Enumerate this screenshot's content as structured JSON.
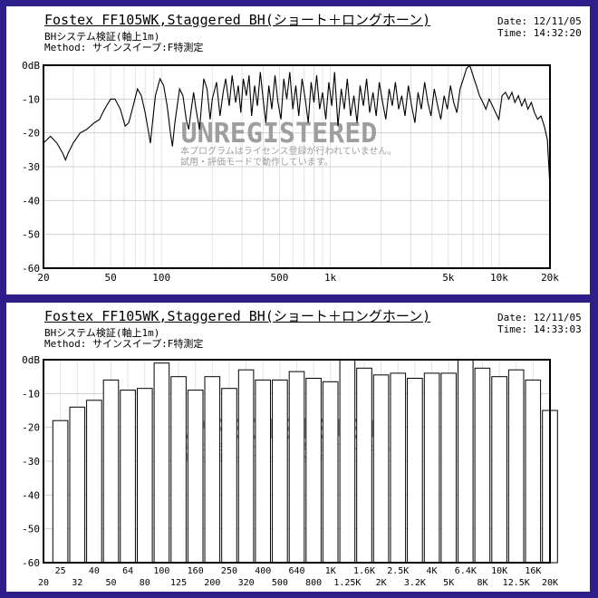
{
  "chart_data": [
    {
      "type": "line",
      "title": "Fostex FF105WK,Staggered BH(ショート＋ロングホーン)",
      "subtitle1": "BHシステム検証(軸上1m)",
      "subtitle2": "Method: サインスイープ:F特測定",
      "date_label": "Date: 12/11/05",
      "time_label": "Time: 14:32:20",
      "ylim": [
        -60,
        0
      ],
      "xlim": [
        20,
        20000
      ],
      "xscale": "log",
      "grid": true,
      "yticks": [
        {
          "v": 0,
          "label": "0dB"
        },
        {
          "v": -10,
          "label": "-10"
        },
        {
          "v": -20,
          "label": "-20"
        },
        {
          "v": -30,
          "label": "-30"
        },
        {
          "v": -40,
          "label": "-40"
        },
        {
          "v": -50,
          "label": "-50"
        },
        {
          "v": -60,
          "label": "-60"
        }
      ],
      "xticks": [
        {
          "v": 20,
          "label": "20"
        },
        {
          "v": 50,
          "label": "50"
        },
        {
          "v": 100,
          "label": "100"
        },
        {
          "v": 500,
          "label": "500"
        },
        {
          "v": 1000,
          "label": "1k"
        },
        {
          "v": 5000,
          "label": "5k"
        },
        {
          "v": 10000,
          "label": "10k"
        },
        {
          "v": 20000,
          "label": "20k"
        }
      ],
      "points": [
        [
          20,
          -23
        ],
        [
          22,
          -21
        ],
        [
          24,
          -23
        ],
        [
          26,
          -26
        ],
        [
          27,
          -28
        ],
        [
          28,
          -26
        ],
        [
          30,
          -23
        ],
        [
          33,
          -20
        ],
        [
          36,
          -19
        ],
        [
          40,
          -17
        ],
        [
          43,
          -16
        ],
        [
          46,
          -13
        ],
        [
          50,
          -10
        ],
        [
          53,
          -10
        ],
        [
          57,
          -13
        ],
        [
          61,
          -18
        ],
        [
          64,
          -17
        ],
        [
          68,
          -12
        ],
        [
          72,
          -7
        ],
        [
          76,
          -9
        ],
        [
          80,
          -14
        ],
        [
          84,
          -20
        ],
        [
          86,
          -23
        ],
        [
          88,
          -18
        ],
        [
          92,
          -9
        ],
        [
          98,
          -4
        ],
        [
          103,
          -6
        ],
        [
          108,
          -12
        ],
        [
          113,
          -20
        ],
        [
          116,
          -24
        ],
        [
          120,
          -17
        ],
        [
          128,
          -7
        ],
        [
          134,
          -9
        ],
        [
          140,
          -16
        ],
        [
          145,
          -19
        ],
        [
          150,
          -13
        ],
        [
          155,
          -8
        ],
        [
          160,
          -13
        ],
        [
          168,
          -19
        ],
        [
          178,
          -4
        ],
        [
          186,
          -7
        ],
        [
          194,
          -16
        ],
        [
          200,
          -10
        ],
        [
          212,
          -5
        ],
        [
          222,
          -15
        ],
        [
          232,
          -8
        ],
        [
          240,
          -4
        ],
        [
          252,
          -12
        ],
        [
          262,
          -3
        ],
        [
          275,
          -11
        ],
        [
          285,
          -6
        ],
        [
          295,
          -14
        ],
        [
          305,
          -4
        ],
        [
          318,
          -9
        ],
        [
          330,
          -3
        ],
        [
          342,
          -15
        ],
        [
          356,
          -6
        ],
        [
          370,
          -12
        ],
        [
          385,
          -2
        ],
        [
          400,
          -10
        ],
        [
          415,
          -17
        ],
        [
          432,
          -6
        ],
        [
          450,
          -13
        ],
        [
          470,
          -3
        ],
        [
          490,
          -11
        ],
        [
          510,
          -16
        ],
        [
          530,
          -4
        ],
        [
          552,
          -10
        ],
        [
          575,
          -2
        ],
        [
          600,
          -13
        ],
        [
          625,
          -6
        ],
        [
          650,
          -15
        ],
        [
          680,
          -4
        ],
        [
          710,
          -10
        ],
        [
          740,
          -17
        ],
        [
          770,
          -5
        ],
        [
          800,
          -11
        ],
        [
          830,
          -3
        ],
        [
          865,
          -13
        ],
        [
          900,
          -8
        ],
        [
          940,
          -16
        ],
        [
          980,
          -5
        ],
        [
          1020,
          -12
        ],
        [
          1060,
          -2
        ],
        [
          1110,
          -18
        ],
        [
          1160,
          -7
        ],
        [
          1210,
          -13
        ],
        [
          1260,
          -4
        ],
        [
          1320,
          -15
        ],
        [
          1380,
          -9
        ],
        [
          1440,
          -17
        ],
        [
          1500,
          -6
        ],
        [
          1570,
          -12
        ],
        [
          1640,
          -4
        ],
        [
          1710,
          -14
        ],
        [
          1790,
          -8
        ],
        [
          1870,
          -15
        ],
        [
          1950,
          -5
        ],
        [
          2040,
          -11
        ],
        [
          2130,
          -16
        ],
        [
          2230,
          -7
        ],
        [
          2330,
          -12
        ],
        [
          2430,
          -5
        ],
        [
          2540,
          -13
        ],
        [
          2650,
          -9
        ],
        [
          2770,
          -15
        ],
        [
          2900,
          -6
        ],
        [
          3030,
          -12
        ],
        [
          3170,
          -17
        ],
        [
          3310,
          -8
        ],
        [
          3460,
          -13
        ],
        [
          3620,
          -5
        ],
        [
          3780,
          -11
        ],
        [
          3950,
          -15
        ],
        [
          4130,
          -7
        ],
        [
          4320,
          -12
        ],
        [
          4510,
          -16
        ],
        [
          4720,
          -9
        ],
        [
          4930,
          -13
        ],
        [
          5150,
          -6
        ],
        [
          5380,
          -11
        ],
        [
          5620,
          -14
        ],
        [
          5870,
          -7
        ],
        [
          6140,
          -4
        ],
        [
          6410,
          -1
        ],
        [
          6700,
          0
        ],
        [
          7000,
          -3
        ],
        [
          7320,
          -6
        ],
        [
          7650,
          -9
        ],
        [
          8000,
          -11
        ],
        [
          8350,
          -13
        ],
        [
          8730,
          -10
        ],
        [
          9120,
          -12
        ],
        [
          9530,
          -14
        ],
        [
          9960,
          -16
        ],
        [
          10400,
          -9
        ],
        [
          10900,
          -8
        ],
        [
          11400,
          -10
        ],
        [
          11900,
          -8
        ],
        [
          12400,
          -11
        ],
        [
          13000,
          -9
        ],
        [
          13600,
          -12
        ],
        [
          14200,
          -10
        ],
        [
          14800,
          -13
        ],
        [
          15500,
          -11
        ],
        [
          16200,
          -14
        ],
        [
          16900,
          -16
        ],
        [
          17700,
          -15
        ],
        [
          18500,
          -18
        ],
        [
          19300,
          -22
        ],
        [
          20000,
          -36
        ]
      ],
      "watermark": {
        "main": "UNREGISTERED",
        "line1": "本プログラムはライセンス登録が行われていません。",
        "line2": "試用・評価モードで動作しています。"
      }
    },
    {
      "type": "bar",
      "title": "Fostex FF105WK,Staggered BH(ショート＋ロングホーン)",
      "subtitle1": "BHシステム検証(軸上1m)",
      "subtitle2": "Method: サインスイープ:F特測定",
      "date_label": "Date: 12/11/05",
      "time_label": "Time: 14:33:03",
      "ylim": [
        -60,
        0
      ],
      "grid": true,
      "yticks": [
        {
          "v": 0,
          "label": "0dB"
        },
        {
          "v": -10,
          "label": "-10"
        },
        {
          "v": -20,
          "label": "-20"
        },
        {
          "v": -30,
          "label": "-30"
        },
        {
          "v": -40,
          "label": "-40"
        },
        {
          "v": -50,
          "label": "-50"
        },
        {
          "v": -60,
          "label": "-60"
        }
      ],
      "categories": [
        "20",
        "25",
        "32",
        "40",
        "50",
        "64",
        "80",
        "100",
        "125",
        "160",
        "200",
        "250",
        "320",
        "400",
        "500",
        "640",
        "800",
        "1K",
        "1.25K",
        "1.6K",
        "2K",
        "2.5K",
        "3.2K",
        "4K",
        "5K",
        "6.4K",
        "8K",
        "10K",
        "12.5K",
        "16K",
        "20K"
      ],
      "values": [
        -60,
        -18,
        -14,
        -12,
        -6,
        -9,
        -8.5,
        -1,
        -5,
        -9,
        -5,
        -8.5,
        -3,
        -6,
        -6,
        -3.5,
        -5.5,
        -6.5,
        0,
        -2.5,
        -4.5,
        -4,
        -5.5,
        -4,
        -4,
        0,
        -2.5,
        -5,
        -3,
        -6,
        -15
      ],
      "watermark": {
        "main": "UNREGISTERED",
        "line1": "本プログラムはライセンス登録が行われていません。",
        "line2": "試用・評価モードで動作しています。"
      }
    }
  ]
}
